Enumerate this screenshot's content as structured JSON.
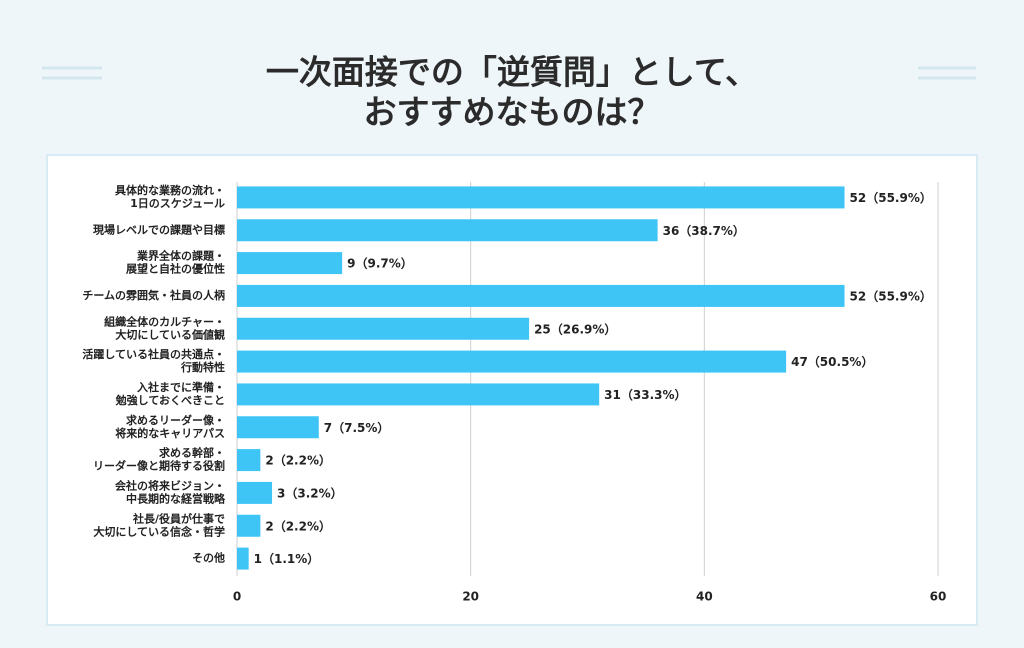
{
  "chart_data": {
    "type": "hbar",
    "title": [
      "一次面接での「逆質問」として、",
      "おすすめなものは？"
    ],
    "categories": [
      [
        "具体的な業務の流れ・",
        "1日のスケジュール"
      ],
      [
        "現場レベルでの課題や目標"
      ],
      [
        "業界全体の課題・",
        "展望と自社の優位性"
      ],
      [
        "チームの雰囲気・社員の人柄"
      ],
      [
        "組織全体のカルチャー・",
        "大切にしている価値観"
      ],
      [
        "活躍している社員の共通点・",
        "行動特性"
      ],
      [
        "入社までに準備・",
        "勉強しておくべきこと"
      ],
      [
        "求めるリーダー像・",
        "将来的なキャリアパス"
      ],
      [
        "求める幹部・",
        "リーダー像と期待する役割"
      ],
      [
        "会社の将来ビジョン・",
        "中長期的な経営戦略"
      ],
      [
        "社長/役員が仕事で",
        "大切にしている信念・哲学"
      ],
      [
        "その他"
      ]
    ],
    "values": [
      52,
      36,
      9,
      52,
      25,
      47,
      31,
      7,
      2,
      3,
      2,
      1
    ],
    "value_labels": [
      "52（55.9%）",
      "36（38.7%）",
      "9（9.7%）",
      "52（55.9%）",
      "25（26.9%）",
      "47（50.5%）",
      "31（33.3%）",
      "7（7.5%）",
      "2（2.2%）",
      "3（3.2%）",
      "2（2.2%）",
      "1（1.1%）"
    ],
    "color": "#3ec5f6",
    "xlim": [
      0,
      60
    ],
    "xticks": [
      0,
      20,
      40,
      60
    ],
    "grid": true
  }
}
